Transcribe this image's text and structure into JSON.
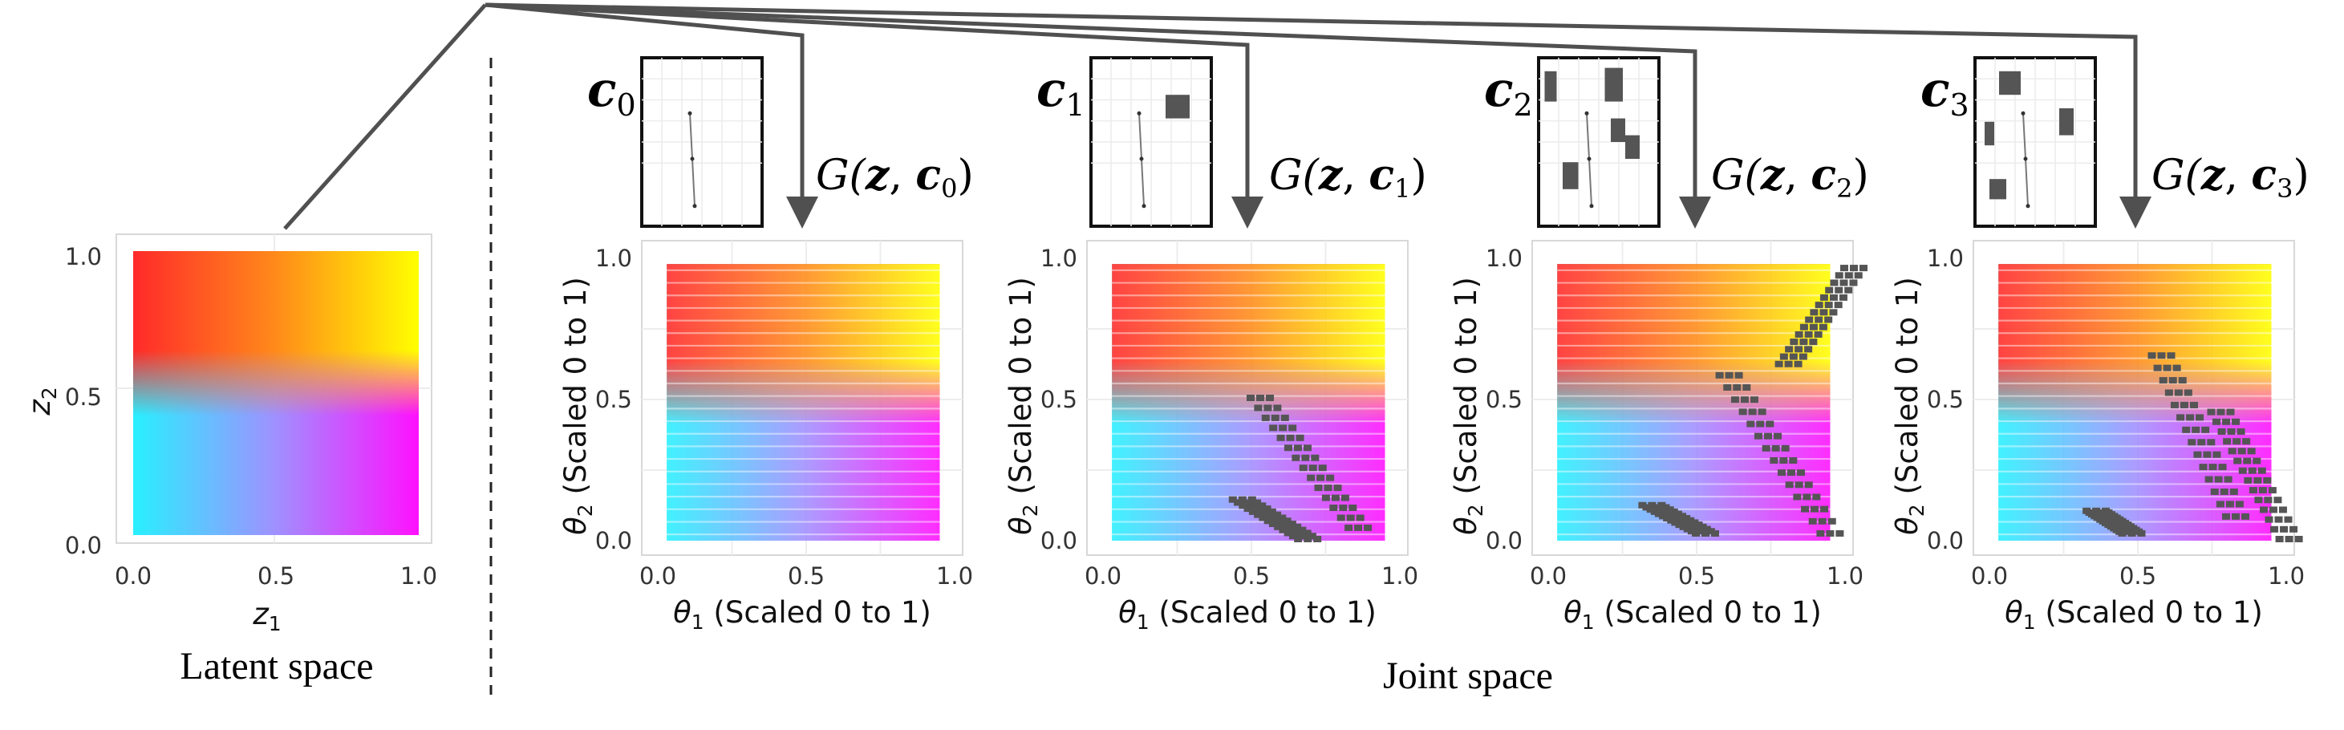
{
  "latent": {
    "xticks": [
      "0.0",
      "0.5",
      "1.0"
    ],
    "yticks": [
      "0.0",
      "0.5",
      "1.0"
    ],
    "xlabel_var": "z",
    "xlabel_sub": "1",
    "ylabel_var": "z",
    "ylabel_sub": "2",
    "caption": "Latent space"
  },
  "joint_caption": "Joint space",
  "panels": [
    {
      "c_var": "c",
      "c_sub": "0",
      "g_prefix": "G(",
      "g_z": "z",
      "g_comma": ", ",
      "g_c": "c",
      "g_sub": "0",
      "g_close": ")"
    },
    {
      "c_var": "c",
      "c_sub": "1",
      "g_prefix": "G(",
      "g_z": "z",
      "g_comma": ", ",
      "g_c": "c",
      "g_sub": "1",
      "g_close": ")"
    },
    {
      "c_var": "c",
      "c_sub": "2",
      "g_prefix": "G(",
      "g_z": "z",
      "g_comma": ", ",
      "g_c": "c",
      "g_sub": "2",
      "g_close": ")"
    },
    {
      "c_var": "c",
      "c_sub": "3",
      "g_prefix": "G(",
      "g_z": "z",
      "g_comma": ", ",
      "g_c": "c",
      "g_sub": "3",
      "g_close": ")"
    }
  ],
  "joint_axes": {
    "xticks": [
      "0.0",
      "0.5",
      "1.0"
    ],
    "yticks": [
      "0.0",
      "0.5",
      "1.0"
    ],
    "xlabel_var": "θ",
    "xlabel_sub": "1",
    "xlabel_rest": " (Scaled 0 to 1)",
    "ylabel_var": "θ",
    "ylabel_sub": "2",
    "ylabel_rest": " (Scaled 0 to 1)"
  },
  "colors": {
    "top_left": "#ff2a2a",
    "top_right": "#ffff00",
    "bottom_left": "#28f0ff",
    "bottom_right": "#ff10ff",
    "obstacle": "#555555",
    "arrow": "#505050"
  }
}
